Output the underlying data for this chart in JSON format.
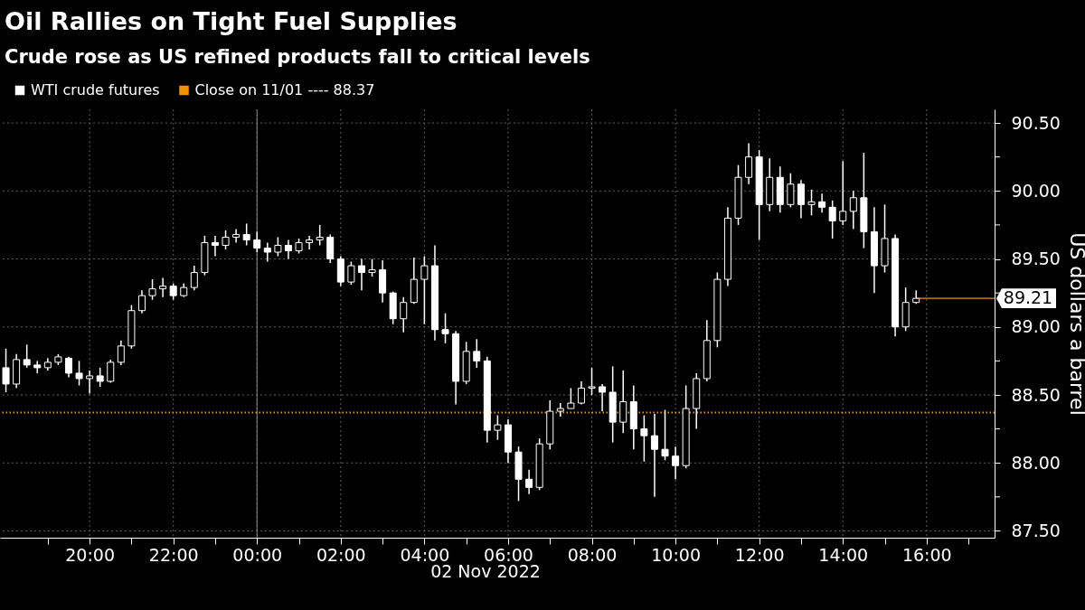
{
  "chart_data": {
    "type": "candlestick",
    "title": "Oil Rallies on Tight Fuel Supplies",
    "subtitle": "Crude rose as US refined products fall to critical levels",
    "ylabel": "US dollars a barrel",
    "annotations": [
      "02 Nov 2022"
    ],
    "x": [
      "2022-11-01T18:00",
      "2022-11-01T18:15",
      "2022-11-01T18:30",
      "2022-11-01T18:45",
      "2022-11-01T19:00",
      "2022-11-01T19:15",
      "2022-11-01T19:30",
      "2022-11-01T19:45",
      "2022-11-01T20:00",
      "2022-11-01T20:15",
      "2022-11-01T20:30",
      "2022-11-01T20:45",
      "2022-11-01T21:00",
      "2022-11-01T21:15",
      "2022-11-01T21:30",
      "2022-11-01T21:45",
      "2022-11-01T22:00",
      "2022-11-01T22:15",
      "2022-11-01T22:30",
      "2022-11-01T22:45",
      "2022-11-01T23:00",
      "2022-11-01T23:15",
      "2022-11-01T23:30",
      "2022-11-01T23:45",
      "2022-11-02T00:00",
      "2022-11-02T00:15",
      "2022-11-02T00:30",
      "2022-11-02T00:45",
      "2022-11-02T01:00",
      "2022-11-02T01:15",
      "2022-11-02T01:30",
      "2022-11-02T01:45",
      "2022-11-02T02:00",
      "2022-11-02T02:15",
      "2022-11-02T02:30",
      "2022-11-02T02:45",
      "2022-11-02T03:00",
      "2022-11-02T03:15",
      "2022-11-02T03:30",
      "2022-11-02T03:45",
      "2022-11-02T04:00",
      "2022-11-02T04:15",
      "2022-11-02T04:30",
      "2022-11-02T04:45",
      "2022-11-02T05:00",
      "2022-11-02T05:15",
      "2022-11-02T05:30",
      "2022-11-02T05:45",
      "2022-11-02T06:00",
      "2022-11-02T06:15",
      "2022-11-02T06:30",
      "2022-11-02T06:45",
      "2022-11-02T07:00",
      "2022-11-02T07:15",
      "2022-11-02T07:30",
      "2022-11-02T07:45",
      "2022-11-02T08:00",
      "2022-11-02T08:15",
      "2022-11-02T08:30",
      "2022-11-02T08:45",
      "2022-11-02T09:00",
      "2022-11-02T09:15",
      "2022-11-02T09:30",
      "2022-11-02T09:45",
      "2022-11-02T10:00",
      "2022-11-02T10:15",
      "2022-11-02T10:30",
      "2022-11-02T10:45",
      "2022-11-02T11:00",
      "2022-11-02T11:15",
      "2022-11-02T11:30",
      "2022-11-02T11:45",
      "2022-11-02T12:00",
      "2022-11-02T12:15",
      "2022-11-02T12:30",
      "2022-11-02T12:45",
      "2022-11-02T13:00",
      "2022-11-02T13:15",
      "2022-11-02T13:30",
      "2022-11-02T13:45",
      "2022-11-02T14:00",
      "2022-11-02T14:15",
      "2022-11-02T14:30",
      "2022-11-02T14:45",
      "2022-11-02T15:00",
      "2022-11-02T15:15",
      "2022-11-02T15:30",
      "2022-11-02T15:45"
    ],
    "series": [
      {
        "name": "WTI crude futures",
        "color": "#ffffff",
        "ohlc": [
          [
            88.7,
            88.84,
            88.52,
            88.58
          ],
          [
            88.58,
            88.8,
            88.55,
            88.76
          ],
          [
            88.76,
            88.87,
            88.7,
            88.72
          ],
          [
            88.72,
            88.75,
            88.66,
            88.7
          ],
          [
            88.7,
            88.77,
            88.68,
            88.74
          ],
          [
            88.74,
            88.8,
            88.72,
            88.78
          ],
          [
            88.77,
            88.78,
            88.63,
            88.66
          ],
          [
            88.66,
            88.75,
            88.57,
            88.62
          ],
          [
            88.62,
            88.68,
            88.51,
            88.64
          ],
          [
            88.64,
            88.7,
            88.56,
            88.6
          ],
          [
            88.6,
            88.76,
            88.59,
            88.74
          ],
          [
            88.74,
            88.9,
            88.72,
            88.86
          ],
          [
            88.86,
            89.16,
            88.84,
            89.12
          ],
          [
            89.12,
            89.27,
            89.1,
            89.23
          ],
          [
            89.23,
            89.35,
            89.2,
            89.28
          ],
          [
            89.28,
            89.36,
            89.22,
            89.3
          ],
          [
            89.3,
            89.32,
            89.2,
            89.23
          ],
          [
            89.23,
            89.32,
            89.22,
            89.29
          ],
          [
            89.29,
            89.45,
            89.27,
            89.4
          ],
          [
            89.4,
            89.67,
            89.38,
            89.62
          ],
          [
            89.62,
            89.67,
            89.52,
            89.6
          ],
          [
            89.6,
            89.71,
            89.57,
            89.66
          ],
          [
            89.66,
            89.72,
            89.62,
            89.68
          ],
          [
            89.68,
            89.76,
            89.6,
            89.64
          ],
          [
            89.64,
            89.7,
            89.55,
            89.58
          ],
          [
            89.58,
            89.62,
            89.48,
            89.55
          ],
          [
            89.55,
            89.66,
            89.52,
            89.6
          ],
          [
            89.6,
            89.64,
            89.5,
            89.56
          ],
          [
            89.56,
            89.65,
            89.54,
            89.62
          ],
          [
            89.62,
            89.67,
            89.57,
            89.64
          ],
          [
            89.64,
            89.75,
            89.6,
            89.66
          ],
          [
            89.66,
            89.68,
            89.47,
            89.5
          ],
          [
            89.5,
            89.52,
            89.3,
            89.33
          ],
          [
            89.33,
            89.48,
            89.31,
            89.45
          ],
          [
            89.45,
            89.5,
            89.27,
            89.4
          ],
          [
            89.4,
            89.5,
            89.37,
            89.42
          ],
          [
            89.42,
            89.49,
            89.18,
            89.25
          ],
          [
            89.25,
            89.26,
            89.02,
            89.06
          ],
          [
            89.06,
            89.22,
            88.96,
            89.18
          ],
          [
            89.18,
            89.51,
            89.17,
            89.35
          ],
          [
            89.35,
            89.52,
            89.02,
            89.45
          ],
          [
            89.45,
            89.6,
            88.9,
            88.98
          ],
          [
            88.98,
            89.1,
            88.88,
            88.95
          ],
          [
            88.95,
            88.97,
            88.43,
            88.6
          ],
          [
            88.6,
            88.89,
            88.58,
            88.82
          ],
          [
            88.82,
            88.91,
            88.7,
            88.75
          ],
          [
            88.75,
            88.78,
            88.15,
            88.24
          ],
          [
            88.24,
            88.35,
            88.17,
            88.28
          ],
          [
            88.28,
            88.32,
            88.0,
            88.08
          ],
          [
            88.08,
            88.12,
            87.72,
            87.88
          ],
          [
            87.88,
            87.95,
            87.77,
            87.82
          ],
          [
            87.82,
            88.18,
            87.8,
            88.14
          ],
          [
            88.14,
            88.46,
            88.1,
            88.38
          ],
          [
            88.38,
            88.44,
            88.34,
            88.4
          ],
          [
            88.4,
            88.55,
            88.4,
            88.44
          ],
          [
            88.44,
            88.6,
            88.43,
            88.55
          ],
          [
            88.55,
            88.7,
            88.5,
            88.56
          ],
          [
            88.56,
            88.58,
            88.38,
            88.52
          ],
          [
            88.52,
            88.71,
            88.15,
            88.3
          ],
          [
            88.3,
            88.68,
            88.22,
            88.45
          ],
          [
            88.45,
            88.57,
            88.1,
            88.25
          ],
          [
            88.25,
            88.35,
            88.01,
            88.2
          ],
          [
            88.2,
            88.36,
            87.75,
            88.1
          ],
          [
            88.1,
            88.39,
            88.02,
            88.05
          ],
          [
            88.05,
            88.12,
            87.88,
            87.98
          ],
          [
            87.98,
            88.57,
            87.96,
            88.4
          ],
          [
            88.4,
            88.66,
            88.25,
            88.62
          ],
          [
            88.62,
            89.05,
            88.6,
            88.9
          ],
          [
            88.9,
            89.4,
            88.85,
            89.35
          ],
          [
            89.35,
            89.88,
            89.3,
            89.8
          ],
          [
            89.8,
            90.19,
            89.75,
            90.1
          ],
          [
            90.1,
            90.35,
            90.05,
            90.25
          ],
          [
            90.25,
            90.3,
            89.64,
            89.9
          ],
          [
            89.9,
            90.24,
            89.85,
            90.1
          ],
          [
            90.1,
            90.18,
            89.84,
            89.9
          ],
          [
            89.9,
            90.13,
            89.88,
            90.05
          ],
          [
            90.05,
            90.08,
            89.8,
            89.9
          ],
          [
            89.9,
            90.01,
            89.82,
            89.92
          ],
          [
            89.92,
            89.98,
            89.84,
            89.88
          ],
          [
            89.88,
            89.93,
            89.65,
            89.78
          ],
          [
            89.78,
            90.22,
            89.75,
            89.85
          ],
          [
            89.85,
            90.0,
            89.72,
            89.95
          ],
          [
            89.95,
            90.28,
            89.58,
            89.7
          ],
          [
            89.7,
            89.88,
            89.25,
            89.45
          ],
          [
            89.45,
            89.9,
            89.4,
            89.65
          ],
          [
            89.65,
            89.68,
            88.93,
            89.0
          ],
          [
            89.0,
            89.29,
            88.97,
            89.18
          ],
          [
            89.18,
            89.27,
            89.17,
            89.21
          ]
        ]
      }
    ],
    "xlim": [
      "2022-11-01T17:58",
      "2022-11-02T17:31"
    ],
    "xticks": [
      {
        "value": "2022-11-01T19:00",
        "label": null
      },
      {
        "value": "2022-11-01T20:00",
        "label": "20:00"
      },
      {
        "value": "2022-11-01T21:00",
        "label": null
      },
      {
        "value": "2022-11-01T22:00",
        "label": "22:00"
      },
      {
        "value": "2022-11-01T23:00",
        "label": null
      },
      {
        "value": "2022-11-02T00:00",
        "label": "00:00"
      },
      {
        "value": "2022-11-02T01:00",
        "label": null
      },
      {
        "value": "2022-11-02T02:00",
        "label": "02:00"
      },
      {
        "value": "2022-11-02T03:00",
        "label": null
      },
      {
        "value": "2022-11-02T04:00",
        "label": "04:00"
      },
      {
        "value": "2022-11-02T05:00",
        "label": null
      },
      {
        "value": "2022-11-02T06:00",
        "label": "06:00"
      },
      {
        "value": "2022-11-02T07:00",
        "label": null
      },
      {
        "value": "2022-11-02T08:00",
        "label": "08:00"
      },
      {
        "value": "2022-11-02T09:00",
        "label": null
      },
      {
        "value": "2022-11-02T10:00",
        "label": "10:00"
      },
      {
        "value": "2022-11-02T11:00",
        "label": null
      },
      {
        "value": "2022-11-02T12:00",
        "label": "12:00"
      },
      {
        "value": "2022-11-02T13:00",
        "label": null
      },
      {
        "value": "2022-11-02T14:00",
        "label": "14:00"
      },
      {
        "value": "2022-11-02T15:00",
        "label": null
      },
      {
        "value": "2022-11-02T16:00",
        "label": "16:00"
      },
      {
        "value": "2022-11-02T17:00",
        "label": null
      }
    ],
    "ylim": [
      87.45,
      90.6
    ],
    "yticks": [
      {
        "value": 87.5,
        "label": "87.50"
      },
      {
        "value": 87.75,
        "label": null
      },
      {
        "value": 88.0,
        "label": "88.00"
      },
      {
        "value": 88.25,
        "label": null
      },
      {
        "value": 88.5,
        "label": "88.50"
      },
      {
        "value": 88.75,
        "label": null
      },
      {
        "value": 89.0,
        "label": "89.00"
      },
      {
        "value": 89.25,
        "label": null
      },
      {
        "value": 89.5,
        "label": "89.50"
      },
      {
        "value": 89.75,
        "label": null
      },
      {
        "value": 90.0,
        "label": "90.00"
      },
      {
        "value": 90.25,
        "label": null
      },
      {
        "value": 90.5,
        "label": "90.50"
      }
    ],
    "grid": true,
    "legend": "top left",
    "ref_lines": [
      {
        "axis": "y",
        "value": 88.37,
        "label": "Close on 11/01 ---- 88.37",
        "color": "#f39200",
        "line_style": "dotted"
      },
      {
        "axis": "y",
        "value": 89.21,
        "label": "89.21",
        "color": "#f39200",
        "line_style": "solid"
      },
      {
        "axis": "x",
        "value": "2022-11-02T00:00",
        "color": "#8a8a8a",
        "line_style": "solid"
      }
    ]
  }
}
